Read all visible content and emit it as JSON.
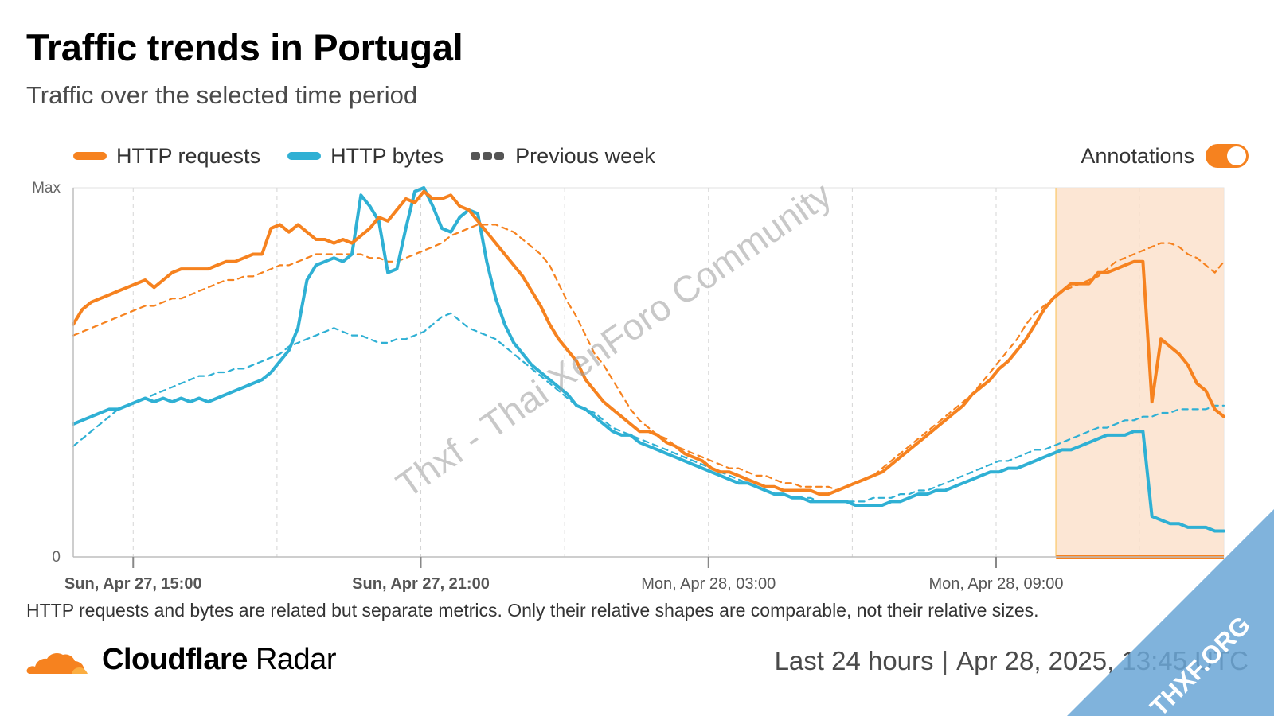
{
  "header": {
    "title": "Traffic trends in Portugal",
    "subtitle": "Traffic over the selected time period"
  },
  "legend": {
    "requests_label": "HTTP requests",
    "bytes_label": "HTTP bytes",
    "previous_label": "Previous week",
    "annotations_label": "Annotations",
    "annotations_on": true
  },
  "colors": {
    "requests": "#f6821f",
    "bytes": "#2fb0d4",
    "annotation_fill": "#fbe2cc",
    "annotation_line": "#fbd38d",
    "grid": "#d5d5d5",
    "axis": "#bdbdbd"
  },
  "footnote": "HTTP requests and bytes are related but separate metrics. Only their relative shapes are comparable, not their relative sizes.",
  "footer": {
    "brand_bold": "Cloudflare",
    "brand_light": "Radar",
    "range": "Last 24 hours",
    "timestamp": "Apr 28, 2025, 13:45 UTC"
  },
  "watermark": "Thxf - Thai XenForo Community",
  "corner_badge": "THXF.ORG",
  "chart_data": {
    "type": "line",
    "x_range": [
      "2025-04-27 13:45",
      "2025-04-28 13:45"
    ],
    "x_step_minutes": 15,
    "x_ticks": [
      {
        "t": "2025-04-27 15:00",
        "label": "Sun, Apr 27, 15:00",
        "bold": true
      },
      {
        "t": "2025-04-27 21:00",
        "label": "Sun, Apr 27, 21:00",
        "bold": true
      },
      {
        "t": "2025-04-28 03:00",
        "label": "Mon, Apr 28, 03:00",
        "bold": false
      },
      {
        "t": "2025-04-28 09:00",
        "label": "Mon, Apr 28, 09:00",
        "bold": false
      }
    ],
    "y_tick_labels": [
      "Max",
      "0"
    ],
    "ylim": [
      0,
      100
    ],
    "grid": true,
    "legend_position": "top-left",
    "annotation_range": [
      "2025-04-28 10:15",
      "2025-04-28 13:45"
    ],
    "series": [
      {
        "name": "HTTP requests",
        "style": "solid",
        "color": "#f6821f",
        "values": [
          63,
          67,
          69,
          70,
          71,
          72,
          73,
          74,
          75,
          73,
          75,
          77,
          78,
          78,
          78,
          78,
          79,
          80,
          80,
          81,
          82,
          82,
          89,
          90,
          88,
          90,
          88,
          86,
          86,
          85,
          86,
          85,
          87,
          89,
          92,
          91,
          94,
          97,
          96,
          99,
          97,
          97,
          98,
          95,
          94,
          91,
          88,
          85,
          82,
          79,
          76,
          72,
          68,
          63,
          59,
          56,
          53,
          48,
          45,
          42,
          40,
          38,
          36,
          34,
          34,
          33,
          31,
          30,
          28,
          27,
          26,
          24,
          23,
          23,
          22,
          21,
          20,
          19,
          19,
          18,
          18,
          18,
          18,
          17,
          17,
          18,
          19,
          20,
          21,
          22,
          23,
          25,
          27,
          29,
          31,
          33,
          35,
          37,
          39,
          41,
          44,
          46,
          48,
          51,
          53,
          56,
          59,
          63,
          67,
          70,
          72,
          74,
          74,
          74,
          77,
          77,
          78,
          79,
          80,
          80,
          42,
          59,
          57,
          55,
          52,
          47,
          45,
          40,
          38
        ]
      },
      {
        "name": "HTTP bytes",
        "style": "solid",
        "color": "#2fb0d4",
        "values": [
          36,
          37,
          38,
          39,
          40,
          40,
          41,
          42,
          43,
          42,
          43,
          42,
          43,
          42,
          43,
          42,
          43,
          44,
          45,
          46,
          47,
          48,
          50,
          53,
          56,
          62,
          75,
          79,
          80,
          81,
          80,
          82,
          98,
          95,
          91,
          77,
          78,
          89,
          99,
          100,
          95,
          89,
          88,
          92,
          94,
          93,
          80,
          70,
          63,
          58,
          55,
          52,
          50,
          48,
          46,
          44,
          41,
          40,
          38,
          36,
          34,
          33,
          33,
          31,
          30,
          29,
          28,
          27,
          26,
          25,
          24,
          23,
          22,
          21,
          20,
          20,
          19,
          18,
          17,
          17,
          16,
          16,
          15,
          15,
          15,
          15,
          15,
          14,
          14,
          14,
          14,
          15,
          15,
          16,
          17,
          17,
          18,
          18,
          19,
          20,
          21,
          22,
          23,
          23,
          24,
          24,
          25,
          26,
          27,
          28,
          29,
          29,
          30,
          31,
          32,
          33,
          33,
          33,
          34,
          34,
          11,
          10,
          9,
          9,
          8,
          8,
          8,
          7,
          7
        ]
      },
      {
        "name": "HTTP requests (previous week)",
        "style": "dashed",
        "color": "#f6821f",
        "values": [
          60,
          61,
          62,
          63,
          64,
          65,
          66,
          67,
          68,
          68,
          69,
          70,
          70,
          71,
          72,
          73,
          74,
          75,
          75,
          76,
          76,
          77,
          78,
          79,
          79,
          80,
          81,
          82,
          82,
          82,
          82,
          82,
          82,
          81,
          81,
          80,
          80,
          81,
          82,
          83,
          84,
          85,
          87,
          88,
          89,
          90,
          90,
          90,
          89,
          88,
          86,
          84,
          82,
          79,
          74,
          69,
          65,
          60,
          55,
          52,
          48,
          44,
          40,
          37,
          35,
          33,
          32,
          30,
          29,
          28,
          27,
          26,
          25,
          24,
          24,
          23,
          22,
          22,
          21,
          20,
          20,
          19,
          19,
          19,
          19,
          18,
          19,
          20,
          21,
          22,
          24,
          26,
          28,
          30,
          32,
          34,
          36,
          38,
          40,
          42,
          44,
          47,
          50,
          53,
          56,
          59,
          63,
          66,
          68,
          70,
          72,
          73,
          74,
          75,
          76,
          78,
          80,
          81,
          82,
          83,
          84,
          85,
          85,
          84,
          82,
          81,
          79,
          77,
          80
        ]
      },
      {
        "name": "HTTP bytes (previous week)",
        "style": "dashed",
        "color": "#2fb0d4",
        "values": [
          30,
          32,
          34,
          36,
          38,
          40,
          41,
          42,
          43,
          44,
          45,
          46,
          47,
          48,
          49,
          49,
          50,
          50,
          51,
          51,
          52,
          53,
          54,
          55,
          57,
          58,
          59,
          60,
          61,
          62,
          61,
          60,
          60,
          59,
          58,
          58,
          59,
          59,
          60,
          61,
          63,
          65,
          66,
          64,
          62,
          61,
          60,
          59,
          57,
          55,
          53,
          51,
          49,
          47,
          45,
          43,
          41,
          40,
          39,
          37,
          35,
          34,
          33,
          32,
          31,
          30,
          29,
          28,
          27,
          26,
          25,
          24,
          23,
          22,
          21,
          20,
          19,
          18,
          17,
          17,
          16,
          16,
          16,
          15,
          15,
          15,
          15,
          15,
          15,
          16,
          16,
          16,
          17,
          17,
          18,
          18,
          19,
          20,
          21,
          22,
          23,
          24,
          25,
          26,
          26,
          27,
          28,
          29,
          29,
          30,
          31,
          32,
          33,
          34,
          35,
          35,
          36,
          37,
          37,
          38,
          38,
          39,
          39,
          40,
          40,
          40,
          40,
          41,
          41
        ]
      }
    ]
  }
}
